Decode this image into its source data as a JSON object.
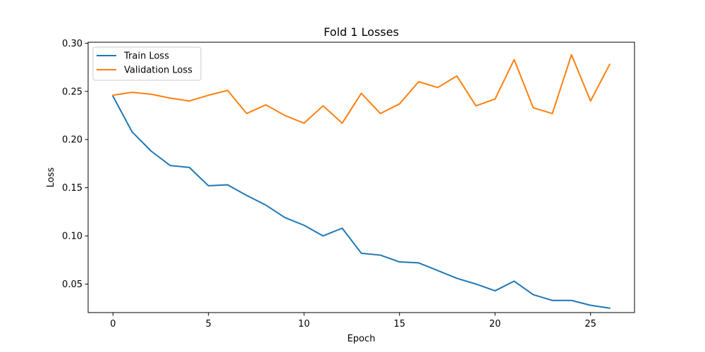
{
  "chart_data": {
    "type": "line",
    "title": "Fold 1 Losses",
    "xlabel": "Epoch",
    "ylabel": "Loss",
    "xlim": [
      -1.3,
      27.3
    ],
    "ylim": [
      0.0204,
      0.301
    ],
    "xticks": [
      0,
      5,
      10,
      15,
      20,
      25
    ],
    "yticks": [
      0.05,
      0.1,
      0.15,
      0.2,
      0.25,
      0.3
    ],
    "ytick_labels": [
      "0.05",
      "0.10",
      "0.15",
      "0.20",
      "0.25",
      "0.30"
    ],
    "grid": false,
    "legend_position": "top-left",
    "x": [
      0,
      1,
      2,
      3,
      4,
      5,
      6,
      7,
      8,
      9,
      10,
      11,
      12,
      13,
      14,
      15,
      16,
      17,
      18,
      19,
      20,
      21,
      22,
      23,
      24,
      25,
      26
    ],
    "series": [
      {
        "name": "Train Loss",
        "color": "#1f77b4",
        "values": [
          0.245,
          0.208,
          0.188,
          0.173,
          0.171,
          0.152,
          0.153,
          0.142,
          0.132,
          0.119,
          0.111,
          0.1,
          0.108,
          0.082,
          0.08,
          0.073,
          0.072,
          0.064,
          0.056,
          0.05,
          0.043,
          0.053,
          0.039,
          0.033,
          0.033,
          0.028,
          0.025
        ]
      },
      {
        "name": "Validation Loss",
        "color": "#ff7f0e",
        "values": [
          0.246,
          0.249,
          0.247,
          0.243,
          0.24,
          0.246,
          0.251,
          0.227,
          0.236,
          0.225,
          0.217,
          0.235,
          0.217,
          0.248,
          0.227,
          0.237,
          0.26,
          0.254,
          0.266,
          0.235,
          0.242,
          0.283,
          0.233,
          0.227,
          0.288,
          0.24,
          0.278
        ]
      }
    ]
  }
}
